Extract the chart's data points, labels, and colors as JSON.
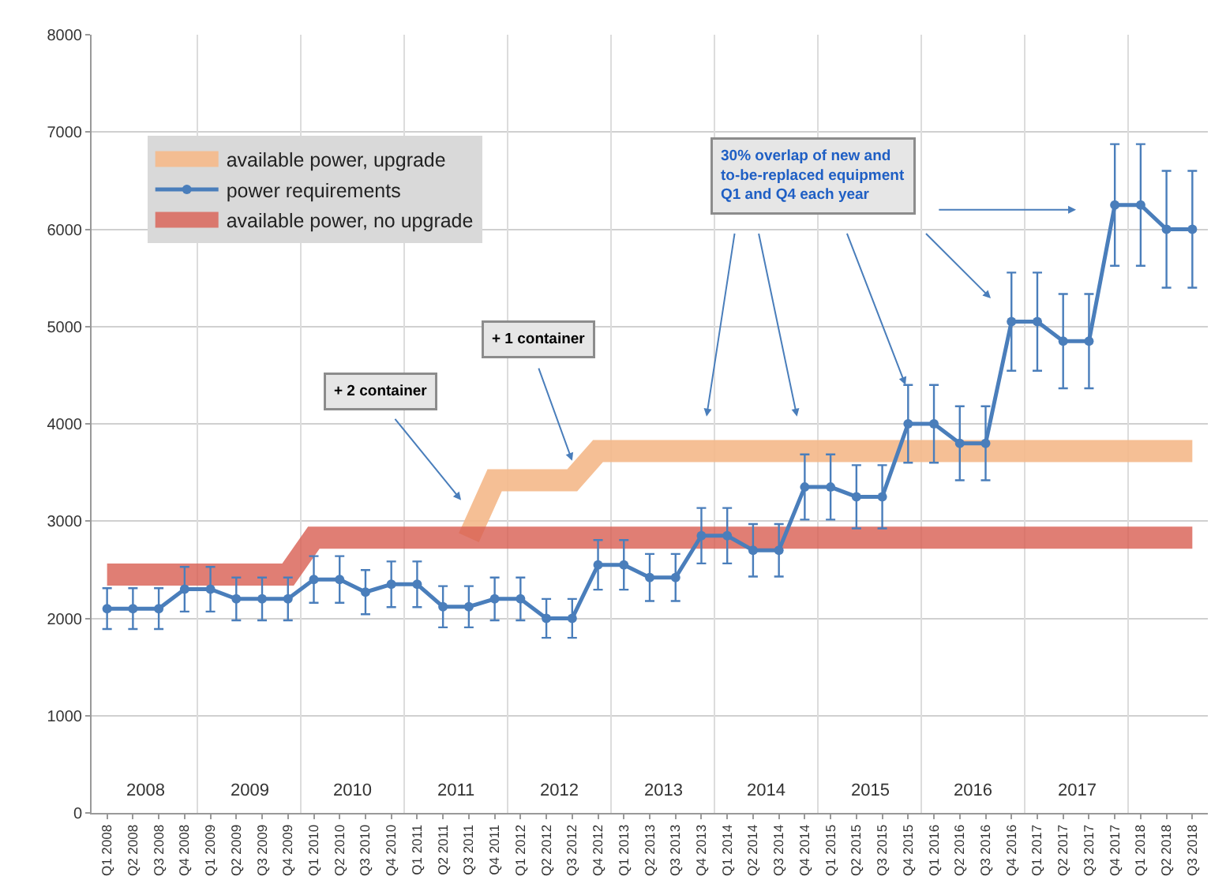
{
  "chart_data": {
    "type": "line",
    "categories": [
      "Q1 2008",
      "Q2 2008",
      "Q3 2008",
      "Q4 2008",
      "Q1 2009",
      "Q2 2009",
      "Q3 2009",
      "Q4 2009",
      "Q1 2010",
      "Q2 2010",
      "Q3 2010",
      "Q4 2010",
      "Q1 2011",
      "Q2 2011",
      "Q3 2011",
      "Q4 2011",
      "Q1 2012",
      "Q2 2012",
      "Q3 2012",
      "Q4 2012",
      "Q1 2013",
      "Q2 2013",
      "Q3 2013",
      "Q4 2013",
      "Q1 2014",
      "Q2 2014",
      "Q3 2014",
      "Q4 2014",
      "Q1 2015",
      "Q2 2015",
      "Q3 2015",
      "Q4 2015",
      "Q1 2016",
      "Q2 2016",
      "Q3 2016",
      "Q4 2016",
      "Q1 2017",
      "Q2 2017",
      "Q3 2017",
      "Q4 2017",
      "Q1 2018",
      "Q2 2018",
      "Q3 2018"
    ],
    "series": [
      {
        "name": "available power, upgrade",
        "color": "#f5b98a",
        "marker": "none",
        "values": [
          null,
          null,
          null,
          null,
          null,
          null,
          null,
          null,
          null,
          null,
          null,
          null,
          null,
          null,
          2830,
          3420,
          3420,
          3420,
          3420,
          3720,
          3720,
          3720,
          3720,
          3720,
          3720,
          3720,
          3720,
          3720,
          3720,
          3720,
          3720,
          3720,
          3720,
          3720,
          3720,
          3720,
          3720,
          3720,
          3720,
          3720,
          3720,
          3720,
          3720
        ]
      },
      {
        "name": "power requirements",
        "color": "#4a7ebb",
        "marker": "circle",
        "values": [
          2100,
          2100,
          2100,
          2300,
          2300,
          2200,
          2200,
          2200,
          2400,
          2400,
          2270,
          2350,
          2350,
          2120,
          2120,
          2200,
          2200,
          2000,
          2000,
          2550,
          2550,
          2420,
          2420,
          2850,
          2850,
          2700,
          2700,
          3350,
          3350,
          3250,
          3250,
          4000,
          4000,
          3800,
          3800,
          5050,
          5050,
          4850,
          4850,
          6250,
          6250,
          6000,
          6000
        ],
        "errors": [
          210,
          210,
          210,
          230,
          230,
          220,
          220,
          220,
          240,
          240,
          227,
          235,
          235,
          212,
          212,
          220,
          220,
          200,
          200,
          255,
          255,
          242,
          242,
          285,
          285,
          270,
          270,
          335,
          335,
          325,
          325,
          400,
          400,
          380,
          380,
          505,
          505,
          485,
          485,
          625,
          625,
          600,
          600
        ]
      },
      {
        "name": "available power, no upgrade",
        "color": "#d95f52",
        "marker": "none",
        "values": [
          2450,
          2450,
          2450,
          2450,
          2450,
          2450,
          2450,
          2450,
          2830,
          2830,
          2830,
          2830,
          2830,
          2830,
          2830,
          2830,
          2830,
          2830,
          2830,
          2830,
          2830,
          2830,
          2830,
          2830,
          2830,
          2830,
          2830,
          2830,
          2830,
          2830,
          2830,
          2830,
          2830,
          2830,
          2830,
          2830,
          2830,
          2830,
          2830,
          2830,
          2830,
          2830,
          2830
        ]
      }
    ],
    "ylim": [
      0,
      8000
    ],
    "yticks": [
      0,
      1000,
      2000,
      3000,
      4000,
      5000,
      6000,
      7000,
      8000
    ],
    "grid": true,
    "legend": "top left",
    "line_style": "solid",
    "annotations": [
      "2008",
      "2009",
      "2010",
      "2011",
      "2012",
      "2013",
      "2014",
      "2015",
      "2016",
      "2017",
      "+ 2 container",
      "+ 1 container",
      "30% overlap of new and\nto-be-replaced equipment\nQ1 and Q4 each year"
    ]
  }
}
